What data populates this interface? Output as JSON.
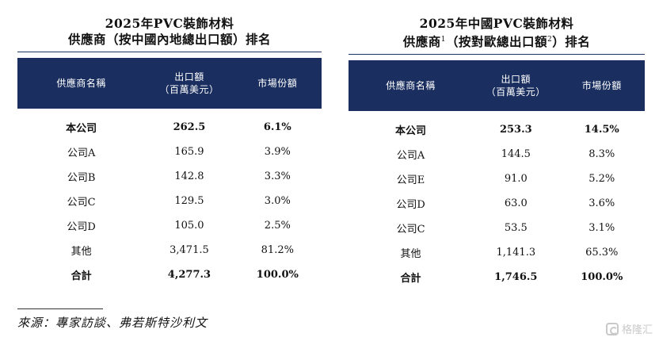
{
  "left": {
    "title_line1": "2025年PVC裝飾材料",
    "title_line2": "供應商（按中國內地總出口額）排名",
    "headers": {
      "supplier": "供應商名稱",
      "export_line1": "出口額",
      "export_line2": "（百萬美元）",
      "share": "市場份額"
    },
    "rows": [
      {
        "supplier": "本公司",
        "export": "262.5",
        "share": "6.1%",
        "bold": true
      },
      {
        "supplier": "公司A",
        "export": "165.9",
        "share": "3.9%",
        "bold": false
      },
      {
        "supplier": "公司B",
        "export": "142.8",
        "share": "3.3%",
        "bold": false
      },
      {
        "supplier": "公司C",
        "export": "129.5",
        "share": "3.0%",
        "bold": false
      },
      {
        "supplier": "公司D",
        "export": "105.0",
        "share": "2.5%",
        "bold": false
      },
      {
        "supplier": "其他",
        "export": "3,471.5",
        "share": "81.2%",
        "bold": false
      },
      {
        "supplier": "合計",
        "export": "4,277.3",
        "share": "100.0%",
        "bold": true
      }
    ]
  },
  "right": {
    "title_line1": "2025年中國PVC裝飾材料",
    "title_line2_a": "供應商",
    "title_sup1": "1",
    "title_line2_b": "（按對歐總出口額",
    "title_sup2": "2",
    "title_line2_c": "）排名",
    "headers": {
      "supplier": "供應商名稱",
      "export_line1": "出口額",
      "export_line2": "（百萬美元）",
      "share": "市場份額"
    },
    "rows": [
      {
        "supplier": "本公司",
        "export": "253.3",
        "share": "14.5%",
        "bold": true
      },
      {
        "supplier": "公司A",
        "export": "144.5",
        "share": "8.3%",
        "bold": false
      },
      {
        "supplier": "公司E",
        "export": "91.0",
        "share": "5.2%",
        "bold": false
      },
      {
        "supplier": "公司D",
        "export": "63.0",
        "share": "3.6%",
        "bold": false
      },
      {
        "supplier": "公司C",
        "export": "53.5",
        "share": "3.1%",
        "bold": false
      },
      {
        "supplier": "其他",
        "export": "1,141.3",
        "share": "65.3%",
        "bold": false
      },
      {
        "supplier": "合計",
        "export": "1,746.5",
        "share": "100.0%",
        "bold": true
      }
    ]
  },
  "source": "來源：專家訪談、弗若斯特沙利文",
  "watermark": "格隆汇",
  "colors": {
    "header_bg": "#1a2f5f",
    "header_text": "#ffffff",
    "title_rule": "#1f3566",
    "watermark": "#c9c9c9"
  }
}
